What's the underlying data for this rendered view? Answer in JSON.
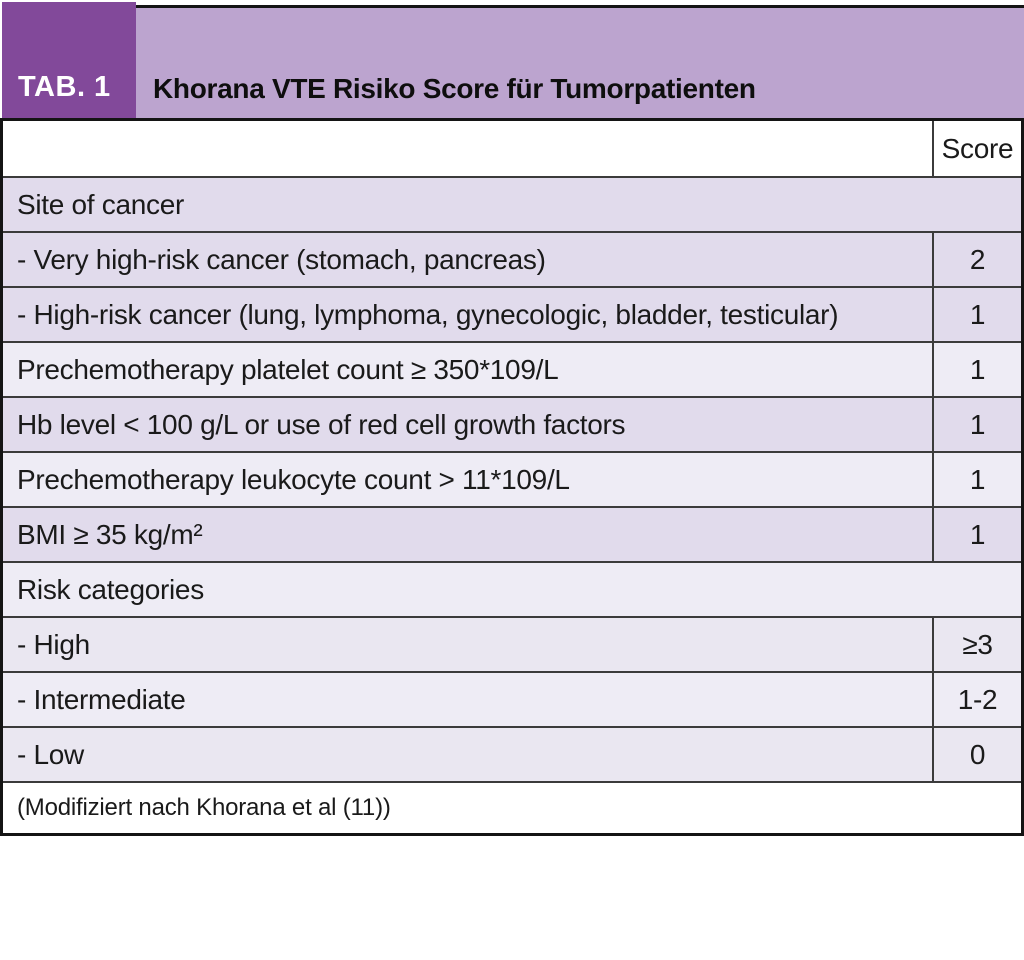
{
  "header": {
    "tag": "TAB. 1",
    "title": "Khorana VTE Risiko Score für Tumorpatienten"
  },
  "table": {
    "score_column_header": "Score",
    "rows": [
      {
        "type": "section",
        "label": "Site of cancer"
      },
      {
        "type": "item",
        "label": "- Very high-risk cancer (stomach, pancreas)",
        "score": "2"
      },
      {
        "type": "item",
        "label": "- High-risk cancer (lung, lymphoma, gynecologic, bladder, testicular)",
        "score": "1"
      },
      {
        "type": "item",
        "label": "Prechemotherapy platelet count ≥ 350*109/L",
        "score": "1"
      },
      {
        "type": "item",
        "label": "Hb level < 100 g/L or use of red cell growth factors",
        "score": "1"
      },
      {
        "type": "item",
        "label": "Prechemotherapy leukocyte count > 11*109/L",
        "score": "1"
      },
      {
        "type": "item",
        "label": "BMI ≥ 35 kg/m²",
        "score": "1"
      },
      {
        "type": "section",
        "label": "Risk categories"
      },
      {
        "type": "item",
        "label": "- High",
        "score": "≥3"
      },
      {
        "type": "item",
        "label": "- Intermediate",
        "score": "1-2"
      },
      {
        "type": "item",
        "label": "- Low",
        "score": "0"
      }
    ],
    "footnote": "(Modifiziert nach Khorana et al (11))"
  },
  "colors": {
    "dark_purple": "#82499A",
    "light_purple": "#BCA4CF",
    "row_lavender": "#E1DBEC",
    "row_light": "#EEECF5",
    "row_mid": "#EAE7F1",
    "border_outer": "#141414",
    "border_inner": "#3B3B3B",
    "text": "#1A1A1A"
  }
}
